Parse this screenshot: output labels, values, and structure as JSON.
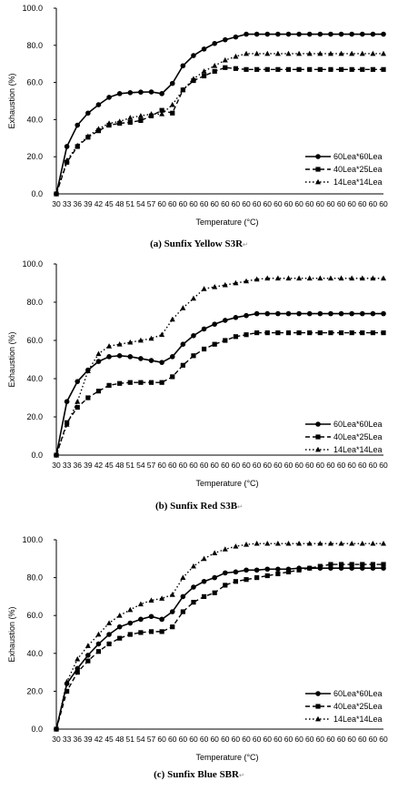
{
  "chart_data": [
    {
      "type": "line",
      "title": "",
      "caption": "(a) Sunfix Yellow S3R",
      "caption_mark": "↵",
      "xlabel": "Temperature (°C)",
      "ylabel": "Exhaustion (%)",
      "ylim": [
        0,
        100
      ],
      "yticks": [
        "0.0",
        "20.0",
        "40.0",
        "60.0",
        "80.0",
        "100.0"
      ],
      "grid": false,
      "legend": "center-right",
      "categories": [
        "30",
        "33",
        "36",
        "39",
        "42",
        "45",
        "48",
        "51",
        "54",
        "57",
        "60",
        "60",
        "60",
        "60",
        "60",
        "60",
        "60",
        "60",
        "60",
        "60",
        "60",
        "60",
        "60",
        "60",
        "60",
        "60",
        "60",
        "60",
        "60",
        "60",
        "60",
        "60"
      ],
      "series": [
        {
          "name": "60Lea*60Lea",
          "marker": "circle",
          "dash": "solid",
          "values": [
            0,
            25.5,
            37,
            43.5,
            48,
            52,
            54,
            54.5,
            54.8,
            54.9,
            54,
            59.5,
            69,
            74.5,
            78,
            81,
            83,
            84.5,
            86,
            86,
            86,
            86,
            86,
            86,
            86,
            86,
            86,
            86,
            86,
            86,
            86,
            86
          ]
        },
        {
          "name": "40Lea*25Lea",
          "marker": "square",
          "dash": "dashed",
          "values": [
            0,
            17,
            25.5,
            30.5,
            34,
            37,
            38,
            38.5,
            39.5,
            42,
            45,
            43.5,
            56,
            61,
            63.5,
            66,
            68,
            67.5,
            67,
            67,
            67,
            67,
            67,
            67,
            67,
            67,
            67,
            67,
            67,
            67,
            67,
            67
          ]
        },
        {
          "name": "14Lea*14Lea",
          "marker": "triangle",
          "dash": "dotted",
          "values": [
            0,
            18,
            26,
            31,
            35,
            38,
            39,
            41,
            42,
            43,
            43,
            48,
            56,
            62,
            66,
            69,
            72,
            74,
            75.5,
            75.5,
            75.5,
            75.5,
            75.5,
            75.5,
            75.5,
            75.5,
            75.5,
            75.5,
            75.5,
            75.5,
            75.5,
            75.5
          ]
        }
      ]
    },
    {
      "type": "line",
      "title": "",
      "caption": "(b) Sunfix Red S3B",
      "caption_mark": "↵",
      "xlabel": "Temperature (°C)",
      "ylabel": "Exhaustion (%)",
      "ylim": [
        0,
        100
      ],
      "yticks": [
        "0.0",
        "20.0",
        "40.0",
        "60.0",
        "80.0",
        "100.0"
      ],
      "grid": false,
      "legend": "bottom-right",
      "categories": [
        "30",
        "33",
        "36",
        "39",
        "42",
        "45",
        "48",
        "51",
        "54",
        "57",
        "60",
        "60",
        "60",
        "60",
        "60",
        "60",
        "60",
        "60",
        "60",
        "60",
        "60",
        "60",
        "60",
        "60",
        "60",
        "60",
        "60",
        "60",
        "60",
        "60",
        "60",
        "60"
      ],
      "series": [
        {
          "name": "60Lea*60Lea",
          "marker": "circle",
          "dash": "solid",
          "values": [
            0,
            28,
            38.5,
            44.5,
            49,
            51.5,
            52,
            51.5,
            50.5,
            49.5,
            48.5,
            51.5,
            58,
            62.5,
            66,
            68.5,
            70.5,
            72,
            73,
            74,
            74,
            74,
            74,
            74,
            74,
            74,
            74,
            74,
            74,
            74,
            74,
            74
          ]
        },
        {
          "name": "40Lea*25Lea",
          "marker": "square",
          "dash": "dashed",
          "values": [
            0,
            17,
            25,
            30,
            33.5,
            36.5,
            37.5,
            38,
            38,
            38,
            38,
            41,
            47,
            52,
            55.5,
            58,
            60,
            62,
            63,
            64,
            64,
            64,
            64,
            64,
            64,
            64,
            64,
            64,
            64,
            64,
            64,
            64
          ]
        },
        {
          "name": "14Lea*14Lea",
          "marker": "triangle",
          "dash": "dotted",
          "values": [
            0,
            16,
            28,
            44,
            53,
            57,
            58,
            59,
            60,
            61,
            63,
            71,
            77,
            82,
            87,
            88,
            89,
            90,
            91,
            92,
            92.5,
            92.5,
            92.5,
            92.5,
            92.5,
            92.5,
            92.5,
            92.5,
            92.5,
            92.5,
            92.5,
            92.5
          ]
        }
      ]
    },
    {
      "type": "line",
      "title": "",
      "caption": "(c) Sunfix Blue SBR",
      "caption_mark": "↵",
      "xlabel": "Temperature (°C)",
      "ylabel": "Exhaustion (%)",
      "ylim": [
        0,
        100
      ],
      "yticks": [
        "0.0",
        "20.0",
        "40.0",
        "60.0",
        "80.0",
        "100.0"
      ],
      "grid": false,
      "legend": "bottom-right",
      "categories": [
        "30",
        "33",
        "36",
        "39",
        "42",
        "45",
        "48",
        "51",
        "54",
        "57",
        "60",
        "60",
        "60",
        "60",
        "60",
        "60",
        "60",
        "60",
        "60",
        "60",
        "60",
        "60",
        "60",
        "60",
        "60",
        "60",
        "60",
        "60",
        "60",
        "60",
        "60",
        "60"
      ],
      "series": [
        {
          "name": "60Lea*60Lea",
          "marker": "circle",
          "dash": "solid",
          "values": [
            0,
            24,
            32,
            39,
            45,
            50,
            54,
            56,
            58,
            59.5,
            58,
            62,
            70,
            75,
            78,
            80,
            82.5,
            83,
            84,
            84,
            84.5,
            84.5,
            84.5,
            85,
            85,
            85,
            85,
            85,
            85,
            85,
            85,
            85
          ]
        },
        {
          "name": "40Lea*25Lea",
          "marker": "square",
          "dash": "dashed",
          "values": [
            0,
            20,
            30,
            36,
            41,
            45,
            48,
            50,
            51,
            51.5,
            51.5,
            54,
            62,
            67,
            70,
            72,
            76,
            78,
            79,
            80,
            81,
            82,
            83,
            84,
            85,
            86,
            87,
            87,
            87,
            87,
            87,
            87
          ]
        },
        {
          "name": "14Lea*14Lea",
          "marker": "triangle",
          "dash": "dotted",
          "values": [
            0,
            25,
            37,
            44,
            50,
            56,
            60,
            63,
            66,
            68,
            69,
            71,
            80,
            86,
            90,
            93,
            95,
            96.5,
            97.5,
            98,
            98,
            98,
            98,
            98,
            98,
            98,
            98,
            98,
            98,
            98,
            98,
            98
          ]
        }
      ]
    }
  ]
}
